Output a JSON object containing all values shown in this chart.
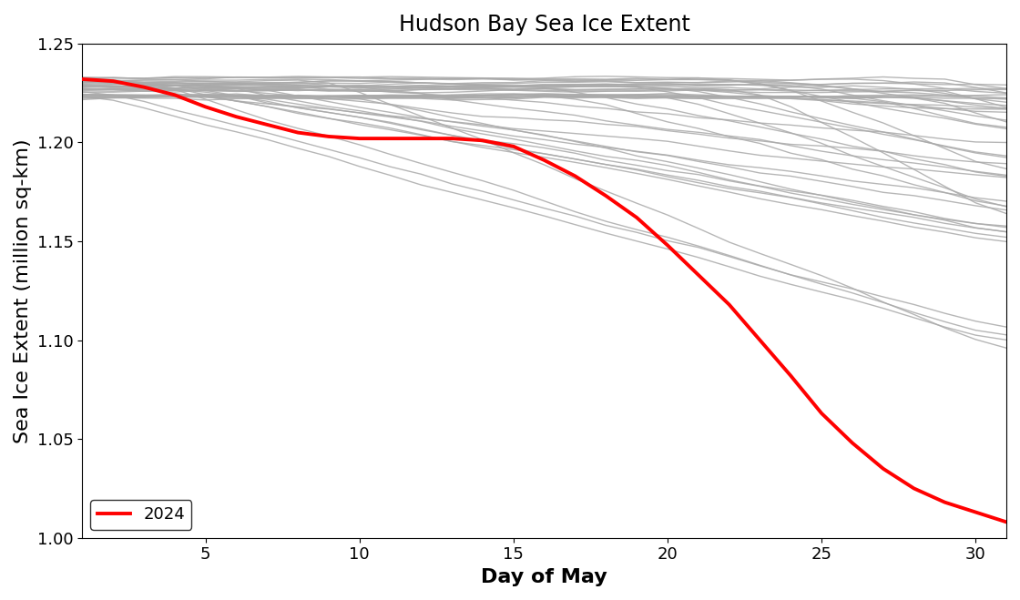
{
  "title": "Hudson Bay Sea Ice Extent",
  "xlabel": "Day of May",
  "ylabel": "Sea Ice Extent (million sq-km)",
  "xlim": [
    1,
    31
  ],
  "ylim": [
    1.0,
    1.235
  ],
  "xticks": [
    5,
    10,
    15,
    20,
    25,
    30
  ],
  "yticks": [
    1.0,
    1.05,
    1.1,
    1.15,
    1.2,
    1.25
  ],
  "grey_color": "#aaaaaa",
  "red_color": "#ff0000",
  "background_color": "#ffffff",
  "title_fontsize": 17,
  "axis_label_fontsize": 16,
  "tick_fontsize": 13,
  "legend_fontsize": 13,
  "red_linewidth": 2.8,
  "grey_linewidth": 1.0,
  "days": [
    1,
    2,
    3,
    4,
    5,
    6,
    7,
    8,
    9,
    10,
    11,
    12,
    13,
    14,
    15,
    16,
    17,
    18,
    19,
    20,
    21,
    22,
    23,
    24,
    25,
    26,
    27,
    28,
    29,
    30,
    31
  ],
  "red_2024": [
    1.232,
    1.231,
    1.228,
    1.224,
    1.218,
    1.213,
    1.209,
    1.205,
    1.203,
    1.202,
    1.202,
    1.202,
    1.202,
    1.201,
    1.198,
    1.191,
    1.183,
    1.173,
    1.162,
    1.148,
    1.133,
    1.118,
    1.1,
    1.082,
    1.063,
    1.048,
    1.035,
    1.025,
    1.018,
    1.013,
    1.008
  ]
}
